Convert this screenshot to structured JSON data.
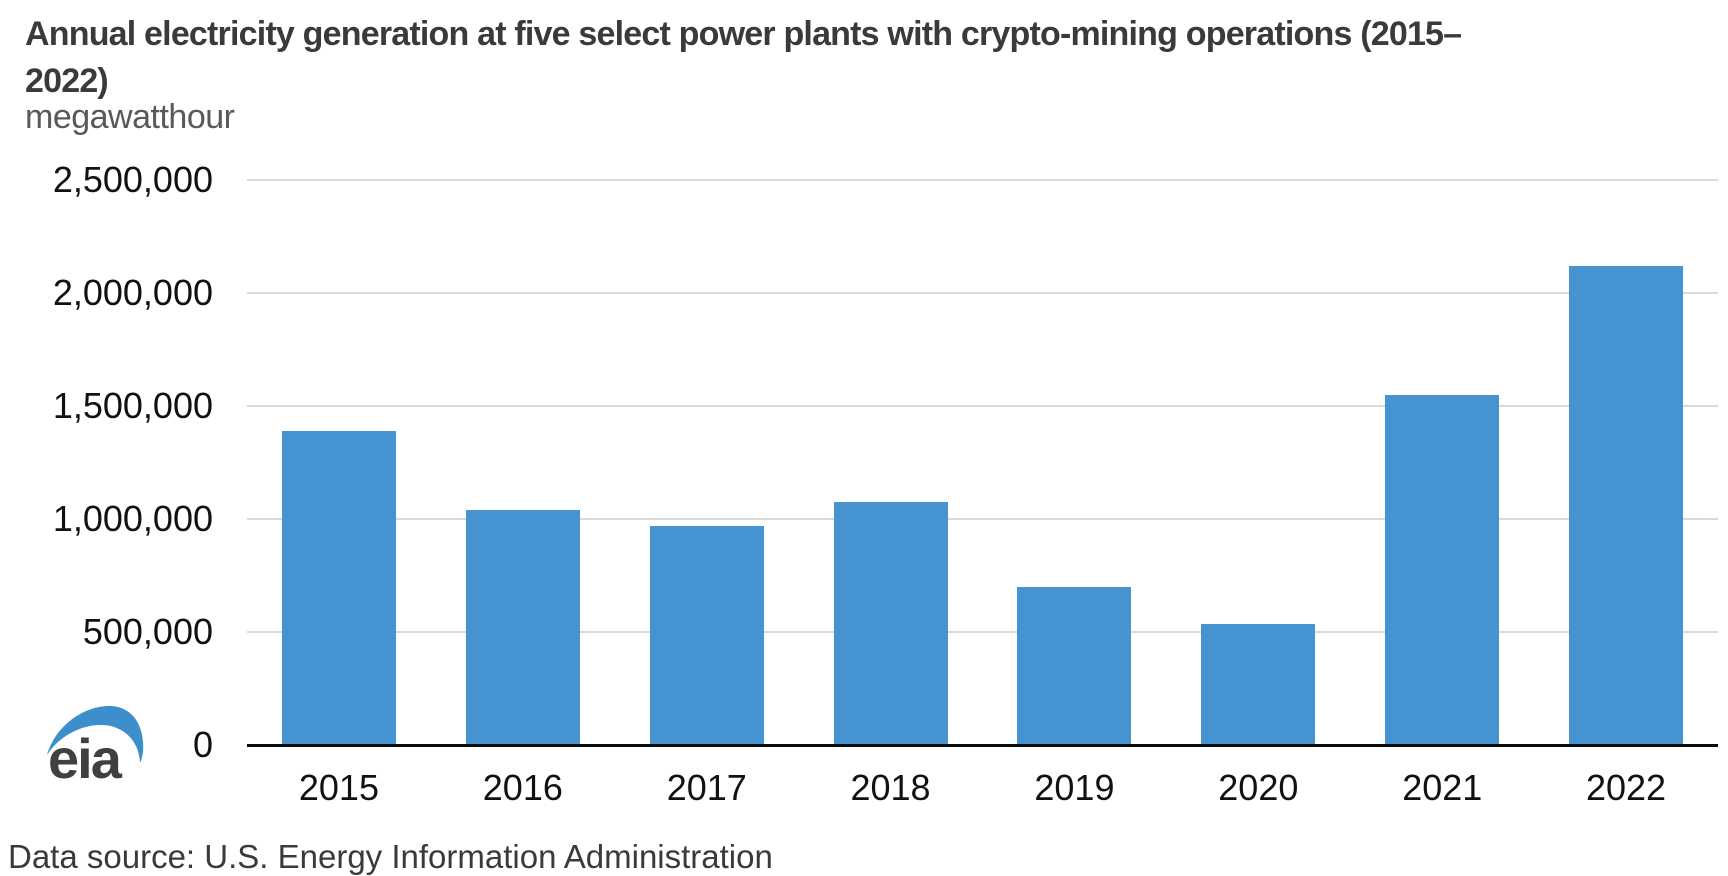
{
  "title": {
    "lines": [
      "Annual electricity generation at five select power plants with crypto-mining operations (2015–",
      "2022)"
    ]
  },
  "subtitle": "megawatthour",
  "source": "Data source: U.S. Energy Information Administration",
  "logo": {
    "text": "eia"
  },
  "colors": {
    "bar": "#4594d1",
    "gridline": "#dadada",
    "axis": "#0a0a0a",
    "title": "#3a3a3c",
    "subtitle": "#58595b",
    "tick_label": "#111111",
    "logo_text": "#3f4040",
    "logo_swoosh": "#3d8fcc"
  },
  "chart_data": {
    "type": "bar",
    "title": "Annual electricity generation at five select power plants with crypto-mining operations (2015–2022)",
    "ylabel": "megawatthour",
    "xlabel": "",
    "categories": [
      "2015",
      "2016",
      "2017",
      "2018",
      "2019",
      "2020",
      "2021",
      "2022"
    ],
    "values": [
      1390000,
      1040000,
      970000,
      1075000,
      700000,
      535000,
      1550000,
      2120000
    ],
    "ylim": [
      0,
      2500000
    ],
    "ytick_step": 500000,
    "ytick_labels": [
      "0",
      "500,000",
      "1,000,000",
      "1,500,000",
      "2,000,000",
      "2,500,000"
    ],
    "grid": "horizontal",
    "legend": "none"
  }
}
